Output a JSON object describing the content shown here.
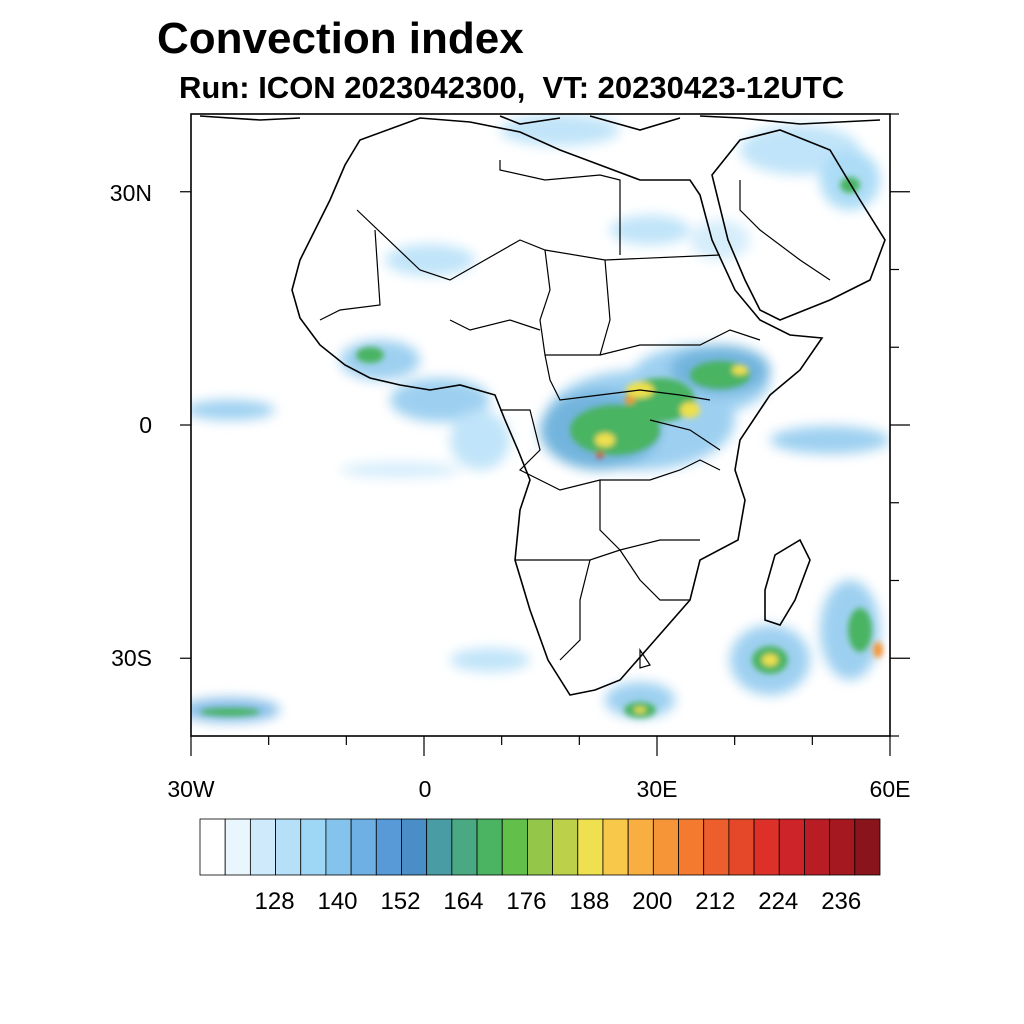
{
  "title": "Convection index",
  "subtitle": "Run: ICON 2023042300,  VT: 20230423-12UTC",
  "map": {
    "lat_ticks": [
      {
        "label": "30N",
        "lat": 30
      },
      {
        "label": "0",
        "lat": 0
      },
      {
        "label": "30S",
        "lat": -30
      }
    ],
    "lon_ticks": [
      {
        "label": "30W",
        "lon": -30
      },
      {
        "label": "0",
        "lon": 0
      },
      {
        "label": "30E",
        "lon": 30
      },
      {
        "label": "60E",
        "lon": 60
      }
    ],
    "lat_range": [
      -40,
      40
    ],
    "lon_range": [
      -30,
      60
    ]
  },
  "colorbar": {
    "labels": [
      "128",
      "140",
      "152",
      "164",
      "176",
      "188",
      "200",
      "212",
      "224",
      "236"
    ],
    "colors": [
      "#ffffff",
      "#eaf6fd",
      "#cfeafa",
      "#b6e0f8",
      "#9ed6f5",
      "#84c4ec",
      "#6eb0e4",
      "#589ad8",
      "#4a8ec8",
      "#4a9ca4",
      "#4aa882",
      "#4ab462",
      "#62c04a",
      "#94c64a",
      "#bcd04a",
      "#eee04e",
      "#f8c84a",
      "#f8ae40",
      "#f69438",
      "#f47a30",
      "#ec5e2c",
      "#e44828",
      "#dc3028",
      "#cc2428",
      "#b81c24",
      "#a61820",
      "#8a141c"
    ]
  },
  "colors": {
    "blue": "#8cc8ee",
    "blue_dark": "#5a9ed8",
    "green": "#4ab462",
    "yellow": "#eee04e",
    "orange": "#f69438",
    "red": "#dc3028"
  }
}
